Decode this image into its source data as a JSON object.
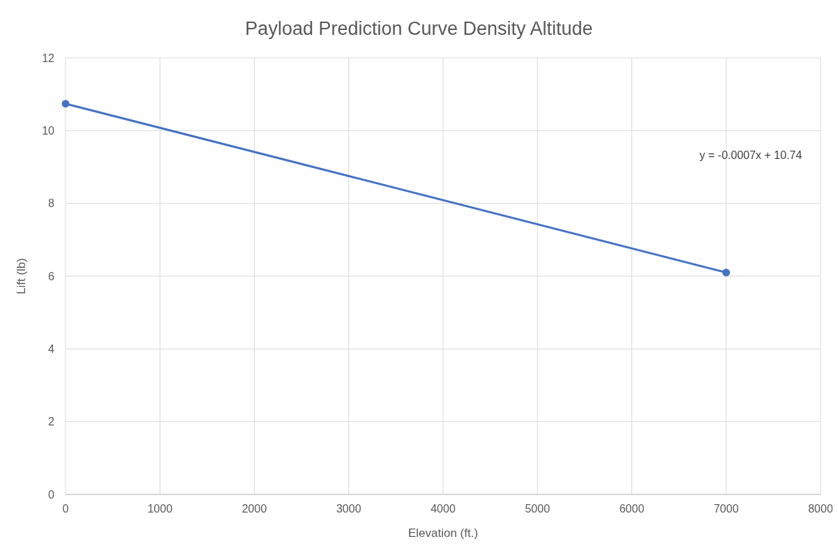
{
  "chart_data": {
    "type": "line",
    "title": "Payload Prediction Curve Density Altitude",
    "xlabel": "Elevation (ft.)",
    "ylabel": "Lift (lb)",
    "x": [
      0,
      7000
    ],
    "series": [
      {
        "color": "#4472c4",
        "values": [
          10.74,
          6.1
        ]
      }
    ],
    "xlim": [
      0,
      8000
    ],
    "xticks": [
      0,
      1000,
      2000,
      3000,
      4000,
      5000,
      6000,
      7000,
      8000
    ],
    "ylim": [
      0,
      12
    ],
    "yticks": [
      0,
      2,
      4,
      6,
      8,
      10,
      12
    ],
    "grid": true,
    "marker": "circle",
    "line_style": "solid",
    "annotations": [
      "y = -0.0007x + 10.74"
    ]
  }
}
